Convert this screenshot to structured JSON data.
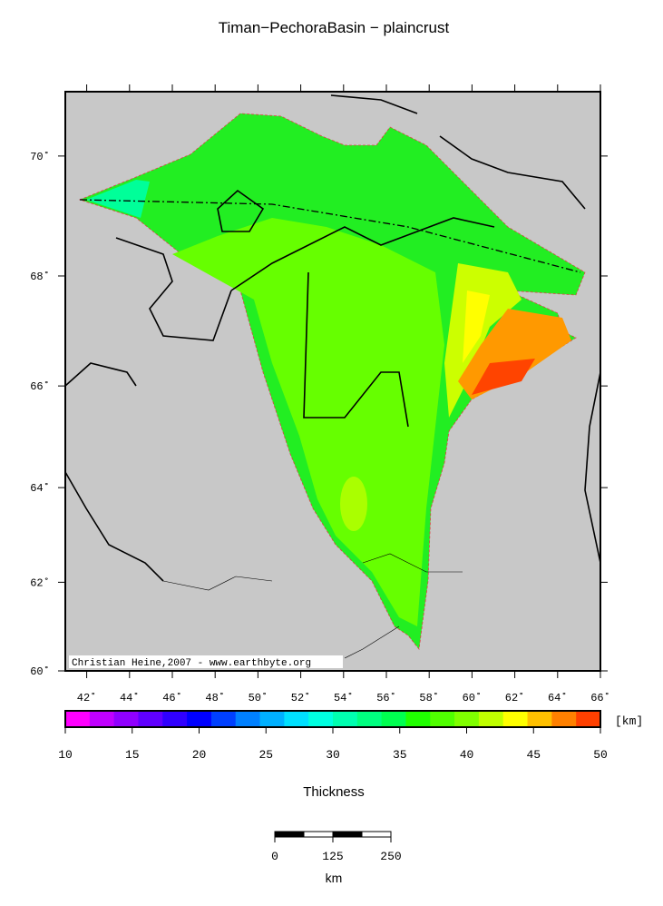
{
  "title": "Timan−PechoraBasin − plaincrust",
  "map": {
    "xlim": [
      41,
      66
    ],
    "ylim": [
      60,
      71
    ],
    "lat_ticks": [
      {
        "value": 60,
        "label": "60˚"
      },
      {
        "value": 62,
        "label": "62˚"
      },
      {
        "value": 64,
        "label": "64˚"
      },
      {
        "value": 66,
        "label": "66˚"
      },
      {
        "value": 68,
        "label": "68˚"
      },
      {
        "value": 70,
        "label": "70˚"
      }
    ],
    "lon_ticks": [
      {
        "value": 42,
        "label": "42˚"
      },
      {
        "value": 44,
        "label": "44˚"
      },
      {
        "value": 46,
        "label": "46˚"
      },
      {
        "value": 48,
        "label": "48˚"
      },
      {
        "value": 50,
        "label": "50˚"
      },
      {
        "value": 52,
        "label": "52˚"
      },
      {
        "value": 54,
        "label": "54˚"
      },
      {
        "value": 56,
        "label": "56˚"
      },
      {
        "value": 58,
        "label": "58˚"
      },
      {
        "value": 60,
        "label": "60˚"
      },
      {
        "value": 62,
        "label": "62˚"
      },
      {
        "value": 64,
        "label": "64˚"
      },
      {
        "value": 66,
        "label": "66˚"
      }
    ],
    "credit": "Christian Heine,2007 - www.earthbyte.org"
  },
  "colorbar": {
    "range": [
      10,
      50
    ],
    "ticks": [
      10,
      15,
      20,
      25,
      30,
      35,
      40,
      45,
      50
    ],
    "unit": "[km]",
    "label": "Thickness",
    "colors": [
      "#ff00ff",
      "#c000ff",
      "#9000ff",
      "#6000ff",
      "#3000ff",
      "#0000ff",
      "#0040ff",
      "#0080ff",
      "#00b0ff",
      "#00e0ff",
      "#00ffe0",
      "#00ffb0",
      "#00ff80",
      "#00ff50",
      "#20ff00",
      "#50ff00",
      "#80ff00",
      "#c0ff00",
      "#ffff00",
      "#ffc000",
      "#ff8000",
      "#ff4000"
    ]
  },
  "scalebar": {
    "range": [
      0,
      250
    ],
    "ticks": [
      0,
      125,
      250
    ],
    "unit": "km"
  }
}
